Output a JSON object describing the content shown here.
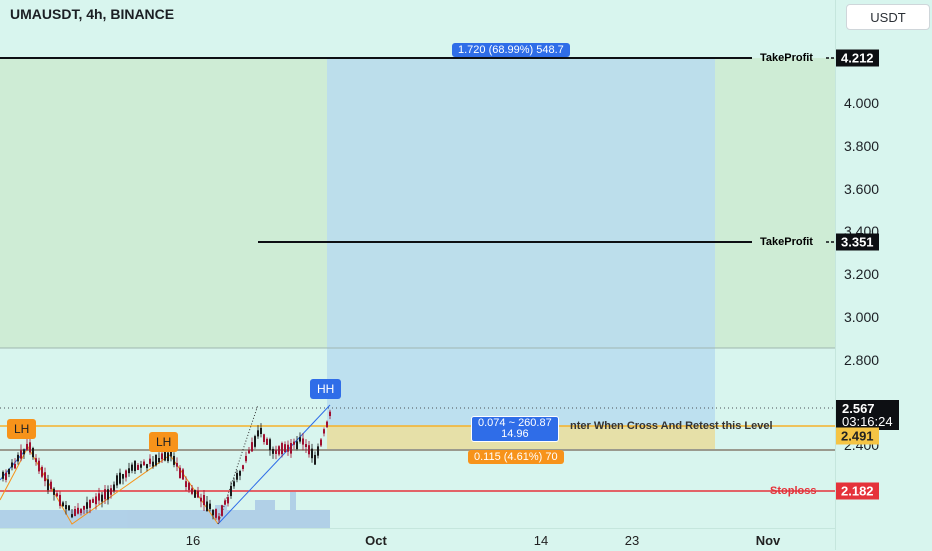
{
  "header": {
    "symbol_title": "UMAUSDT, 4h, BINANCE"
  },
  "price_axis": {
    "currency_button": "USDT",
    "ticks": [
      "4.000",
      "3.800",
      "3.600",
      "3.400",
      "3.200",
      "3.000",
      "2.800",
      "2.400"
    ],
    "tags": {
      "tp1": "4.212",
      "tp2": "3.351",
      "current_price": "2.567",
      "countdown": "03:16:24",
      "entry": "2.491",
      "stoploss": "2.182"
    }
  },
  "time_axis": {
    "labels": [
      "16",
      "Oct",
      "14",
      "23",
      "Nov"
    ]
  },
  "drawings": {
    "tp_line_label": "TakeProfit",
    "tp2_line_label": "TakeProfit",
    "entry_text": "nter When Cross And Retest this Level",
    "stoploss_label": "Stoploss",
    "target_badge": "1.720 (68.99%) 548.7",
    "range_badge_line1": "0.074 ~ 260.87",
    "range_badge_line2": "14.96",
    "risk_badge": "0.115 (4.61%) 70",
    "patterns": {
      "lh1": "LH",
      "lh2": "LH",
      "hh": "HH"
    }
  },
  "colors": {
    "background": "#d8f5ee",
    "profit_zone": "#b8dcef",
    "risk_zone": "#e6e0a8",
    "stoploss": "#e5323a",
    "pattern_orange": "#f7931a",
    "pattern_blue": "#2f6de8",
    "candle_down": "#a01030",
    "candle_up": "#1a1a1a"
  }
}
